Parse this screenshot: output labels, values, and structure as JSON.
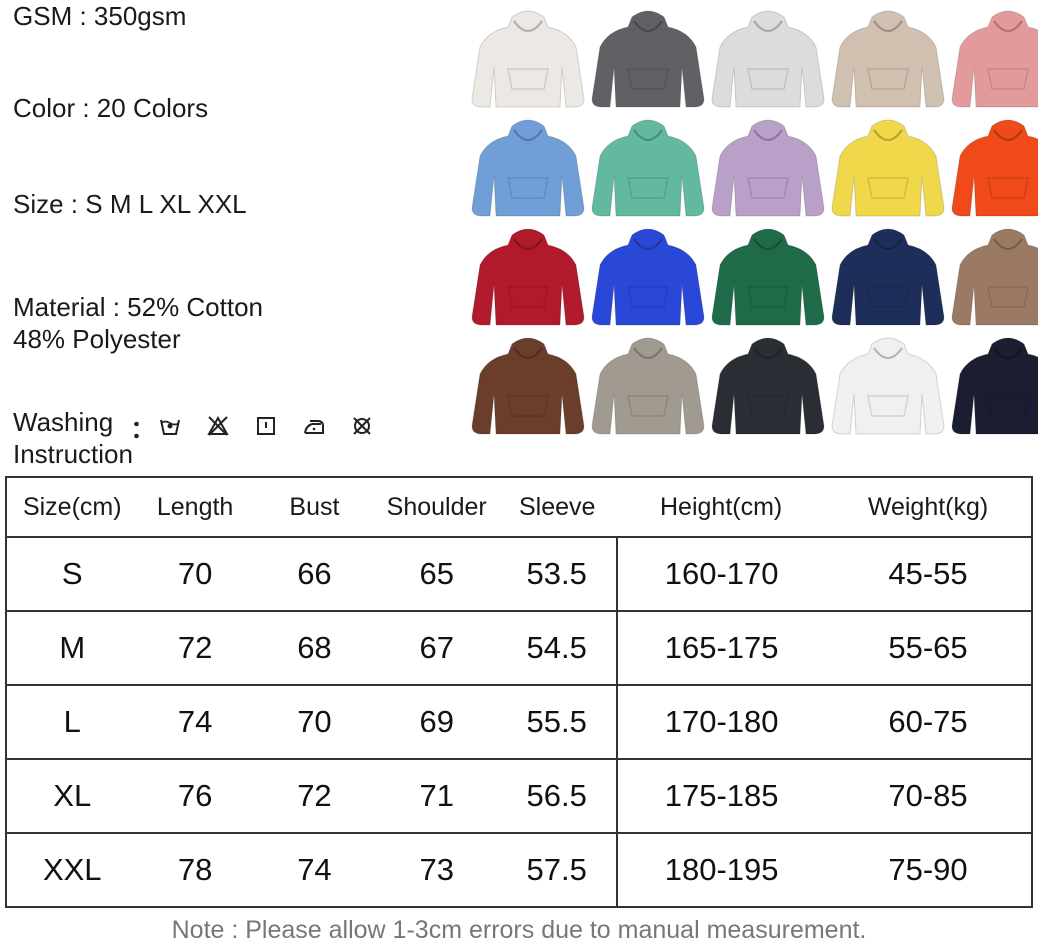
{
  "specs": {
    "gsm": "GSM : 350gsm",
    "color": "Color : 20 Colors",
    "size": "Size : S M L XL XXL",
    "material_line1": "Material : 52% Cotton",
    "material_line2": "48% Polyester",
    "washing_line1": "Washing",
    "washing_line2": "Instruction"
  },
  "washing_icons": [
    "hand-wash-icon",
    "do-not-bleach-icon",
    "tumble-dry-icon",
    "iron-icon",
    "do-not-dry-clean-icon"
  ],
  "hoodie_colors": [
    "#ece9e4",
    "#5f6164",
    "#dcdcde",
    "#cfc0b0",
    "#e39a9a",
    "#6f9fd6",
    "#63b8a0",
    "#b8a0c8",
    "#f0d84a",
    "#f04a1a",
    "#b01a2a",
    "#2a48d8",
    "#1f6a48",
    "#1e2e5a",
    "#9a7a62",
    "#6a3e2a",
    "#a09a90",
    "#2a2e34",
    "#f0f0f0",
    "#1a1e30"
  ],
  "table": {
    "headers": [
      "Size(cm)",
      "Length",
      "Bust",
      "Shoulder",
      "Sleeve",
      "Height(cm)",
      "Weight(kg)"
    ],
    "rows": [
      [
        "S",
        "70",
        "66",
        "65",
        "53.5",
        "160-170",
        "45-55"
      ],
      [
        "M",
        "72",
        "68",
        "67",
        "54.5",
        "165-175",
        "55-65"
      ],
      [
        "L",
        "74",
        "70",
        "69",
        "55.5",
        "170-180",
        "60-75"
      ],
      [
        "XL",
        "76",
        "72",
        "71",
        "56.5",
        "175-185",
        "70-85"
      ],
      [
        "XXL",
        "78",
        "74",
        "73",
        "57.5",
        "180-195",
        "75-90"
      ]
    ]
  },
  "note": "Note : Please allow 1-3cm errors due to manual measurement."
}
